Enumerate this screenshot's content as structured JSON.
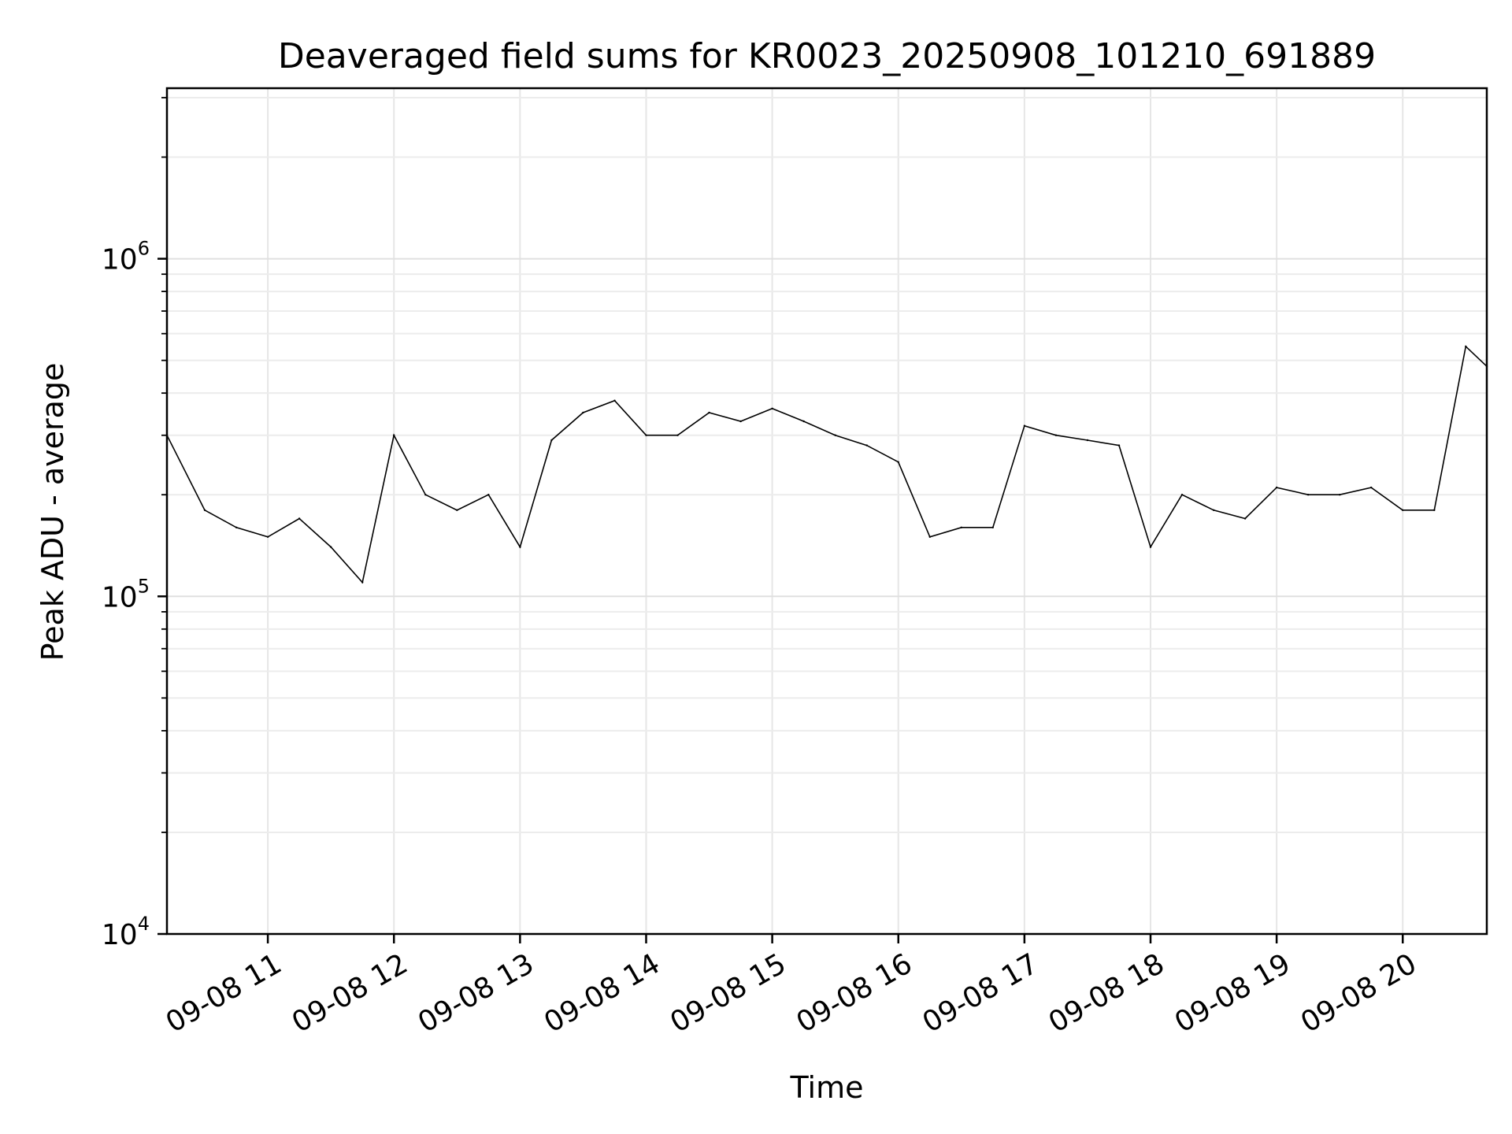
{
  "chart_data": {
    "type": "line",
    "title": "Deaveraged field sums for KR0023_20250908_101210_691889",
    "xlabel": "Time",
    "ylabel": "Peak ADU - average",
    "yscale": "log",
    "ylim": [
      10000,
      3200000
    ],
    "xlim": [
      "2025-09-08 10:12",
      "2025-09-08 20:40"
    ],
    "x_ticks": [
      "2025-09-08 11:00",
      "2025-09-08 12:00",
      "2025-09-08 13:00",
      "2025-09-08 14:00",
      "2025-09-08 15:00",
      "2025-09-08 16:00",
      "2025-09-08 17:00",
      "2025-09-08 18:00",
      "2025-09-08 19:00",
      "2025-09-08 20:00"
    ],
    "x_tick_labels": [
      "09-08 11",
      "09-08 12",
      "09-08 13",
      "09-08 14",
      "09-08 15",
      "09-08 16",
      "09-08 17",
      "09-08 18",
      "09-08 19",
      "09-08 20"
    ],
    "y_tick_labels": [
      {
        "base": "10",
        "exp": "4"
      },
      {
        "base": "10",
        "exp": "5"
      },
      {
        "base": "10",
        "exp": "6"
      }
    ],
    "grid": true,
    "line_color": "#000000",
    "series": [
      {
        "x": [
          "2025-09-08 10:12",
          "2025-09-08 10:30",
          "2025-09-08 10:45",
          "2025-09-08 11:00",
          "2025-09-08 11:15",
          "2025-09-08 11:30",
          "2025-09-08 11:45",
          "2025-09-08 12:00",
          "2025-09-08 12:15",
          "2025-09-08 12:30",
          "2025-09-08 12:45",
          "2025-09-08 13:00",
          "2025-09-08 13:15",
          "2025-09-08 13:30",
          "2025-09-08 13:45",
          "2025-09-08 14:00",
          "2025-09-08 14:15",
          "2025-09-08 14:30",
          "2025-09-08 14:45",
          "2025-09-08 15:00",
          "2025-09-08 15:15",
          "2025-09-08 15:30",
          "2025-09-08 15:45",
          "2025-09-08 16:00",
          "2025-09-08 16:15",
          "2025-09-08 16:30",
          "2025-09-08 16:45",
          "2025-09-08 17:00",
          "2025-09-08 17:15",
          "2025-09-08 17:30",
          "2025-09-08 17:45",
          "2025-09-08 18:00",
          "2025-09-08 18:15",
          "2025-09-08 18:30",
          "2025-09-08 18:45",
          "2025-09-08 19:00",
          "2025-09-08 19:15",
          "2025-09-08 19:30",
          "2025-09-08 19:45",
          "2025-09-08 20:00",
          "2025-09-08 20:15",
          "2025-09-08 20:30",
          "2025-09-08 20:40"
        ],
        "values": [
          300000,
          180000,
          160000,
          150000,
          170000,
          140000,
          110000,
          300000,
          200000,
          180000,
          200000,
          140000,
          290000,
          350000,
          380000,
          300000,
          300000,
          350000,
          330000,
          360000,
          330000,
          300000,
          280000,
          250000,
          150000,
          160000,
          160000,
          320000,
          300000,
          290000,
          280000,
          140000,
          200000,
          180000,
          170000,
          210000,
          200000,
          200000,
          210000,
          180000,
          180000,
          550000,
          480000
        ]
      }
    ]
  }
}
